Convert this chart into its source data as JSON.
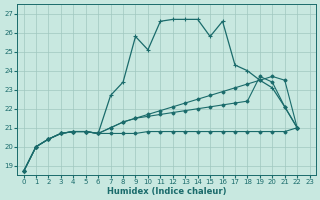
{
  "xlabel": "Humidex (Indice chaleur)",
  "bg_color": "#c8e8e0",
  "grid_color": "#a0c8c0",
  "line_color": "#1a6b6b",
  "xlim": [
    -0.5,
    23.5
  ],
  "ylim": [
    18.5,
    27.5
  ],
  "xticks": [
    0,
    1,
    2,
    3,
    4,
    5,
    6,
    7,
    8,
    9,
    10,
    11,
    12,
    13,
    14,
    15,
    16,
    17,
    18,
    19,
    20,
    21,
    22,
    23
  ],
  "yticks": [
    19,
    20,
    21,
    22,
    23,
    24,
    25,
    26,
    27
  ],
  "series": {
    "jagged": {
      "x": [
        0,
        1,
        2,
        3,
        4,
        5,
        6,
        7,
        8,
        9,
        10,
        11,
        12,
        13,
        14,
        15,
        16,
        17,
        18,
        19,
        20,
        21,
        22
      ],
      "y": [
        18.7,
        20.0,
        20.4,
        20.7,
        20.8,
        20.8,
        20.7,
        22.7,
        23.4,
        25.8,
        25.1,
        26.6,
        26.7,
        26.7,
        26.7,
        25.8,
        26.6,
        24.3,
        24.0,
        23.5,
        23.1,
        22.1,
        21.0
      ]
    },
    "diagonal1": {
      "x": [
        0,
        1,
        2,
        3,
        4,
        5,
        6,
        7,
        8,
        9,
        10,
        11,
        12,
        13,
        14,
        15,
        16,
        17,
        18,
        19,
        20,
        21,
        22
      ],
      "y": [
        18.7,
        20.0,
        20.4,
        20.7,
        20.8,
        20.8,
        20.7,
        21.0,
        21.3,
        21.5,
        21.7,
        21.9,
        22.1,
        22.3,
        22.5,
        22.7,
        22.9,
        23.1,
        23.3,
        23.5,
        23.7,
        23.5,
        21.0
      ]
    },
    "diagonal2": {
      "x": [
        0,
        1,
        2,
        3,
        4,
        5,
        6,
        7,
        8,
        9,
        10,
        11,
        12,
        13,
        14,
        15,
        16,
        17,
        18,
        19,
        20,
        21,
        22
      ],
      "y": [
        18.7,
        20.0,
        20.4,
        20.7,
        20.8,
        20.8,
        20.7,
        21.0,
        21.3,
        21.5,
        21.6,
        21.7,
        21.8,
        21.9,
        22.0,
        22.1,
        22.2,
        22.3,
        22.4,
        23.7,
        23.4,
        22.1,
        21.0
      ]
    },
    "flat": {
      "x": [
        0,
        1,
        2,
        3,
        4,
        5,
        6,
        7,
        8,
        9,
        10,
        11,
        12,
        13,
        14,
        15,
        16,
        17,
        18,
        19,
        20,
        21,
        22
      ],
      "y": [
        18.7,
        20.0,
        20.4,
        20.7,
        20.8,
        20.8,
        20.7,
        20.7,
        20.7,
        20.7,
        20.8,
        20.8,
        20.8,
        20.8,
        20.8,
        20.8,
        20.8,
        20.8,
        20.8,
        20.8,
        20.8,
        20.8,
        21.0
      ]
    }
  }
}
